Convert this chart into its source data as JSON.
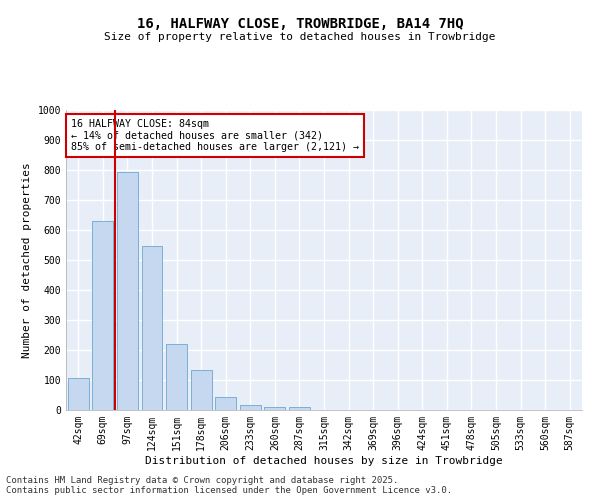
{
  "title": "16, HALFWAY CLOSE, TROWBRIDGE, BA14 7HQ",
  "subtitle": "Size of property relative to detached houses in Trowbridge",
  "xlabel": "Distribution of detached houses by size in Trowbridge",
  "ylabel": "Number of detached properties",
  "bar_color": "#c5d8f0",
  "bar_edge_color": "#7bafd4",
  "background_color": "#e8eef8",
  "grid_color": "#ffffff",
  "categories": [
    "42sqm",
    "69sqm",
    "97sqm",
    "124sqm",
    "151sqm",
    "178sqm",
    "206sqm",
    "233sqm",
    "260sqm",
    "287sqm",
    "315sqm",
    "342sqm",
    "369sqm",
    "396sqm",
    "424sqm",
    "451sqm",
    "478sqm",
    "505sqm",
    "533sqm",
    "560sqm",
    "587sqm"
  ],
  "values": [
    107,
    630,
    795,
    547,
    220,
    135,
    42,
    17,
    10,
    10,
    0,
    0,
    0,
    0,
    0,
    0,
    0,
    0,
    0,
    0,
    0
  ],
  "ylim": [
    0,
    1000
  ],
  "yticks": [
    0,
    100,
    200,
    300,
    400,
    500,
    600,
    700,
    800,
    900,
    1000
  ],
  "vline_x": 1.5,
  "vline_color": "#cc0000",
  "annotation_text": "16 HALFWAY CLOSE: 84sqm\n← 14% of detached houses are smaller (342)\n85% of semi-detached houses are larger (2,121) →",
  "annotation_box_color": "#ffffff",
  "annotation_box_edgecolor": "#cc0000",
  "footer_line1": "Contains HM Land Registry data © Crown copyright and database right 2025.",
  "footer_line2": "Contains public sector information licensed under the Open Government Licence v3.0.",
  "title_fontsize": 10,
  "subtitle_fontsize": 8,
  "footer_fontsize": 6.5,
  "tick_fontsize": 7,
  "ylabel_fontsize": 8,
  "xlabel_fontsize": 8
}
